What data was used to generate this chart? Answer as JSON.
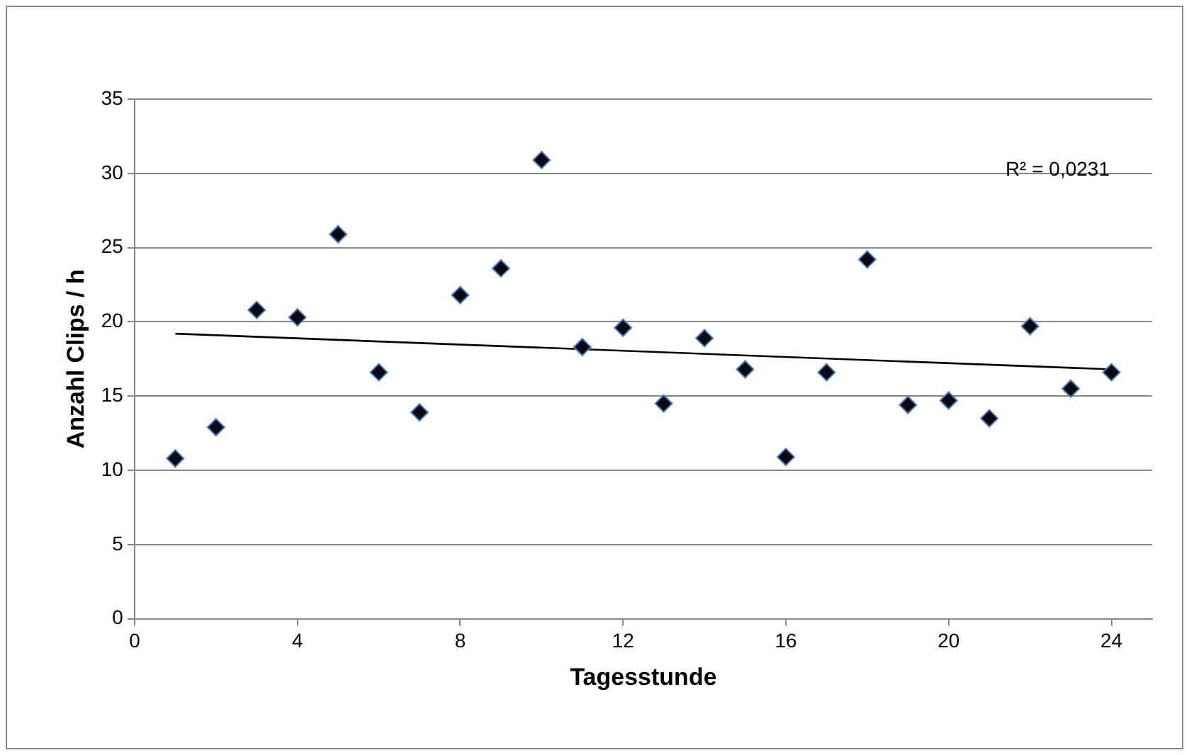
{
  "chart_data": {
    "type": "scatter",
    "xlabel": "Tagesstunde",
    "ylabel": "Anzahl Clips / h",
    "annotations": [
      "R² = 0,0231"
    ],
    "x": [
      1,
      2,
      3,
      4,
      5,
      6,
      7,
      8,
      9,
      10,
      11,
      12,
      13,
      14,
      15,
      16,
      17,
      18,
      19,
      20,
      21,
      22,
      23,
      24
    ],
    "series": [
      {
        "color": "#0a0a14",
        "values": [
          10.8,
          12.9,
          20.8,
          20.3,
          25.9,
          16.6,
          13.9,
          21.8,
          23.6,
          30.9,
          18.3,
          19.6,
          14.5,
          18.9,
          16.8,
          10.9,
          16.6,
          24.2,
          14.4,
          14.7,
          13.5,
          19.7,
          15.5,
          16.6
        ]
      },
      {
        "type": "line",
        "color": "#000000",
        "x": [
          1,
          24
        ],
        "values": [
          19.2,
          16.8
        ],
        "marker": "none"
      }
    ],
    "marker": "diamond",
    "xlim": [
      0,
      25
    ],
    "xticks": [
      0,
      4,
      8,
      12,
      16,
      20,
      24
    ],
    "ylim": [
      0,
      35
    ],
    "yticks": [
      0,
      5,
      10,
      15,
      20,
      25,
      30,
      35
    ],
    "grid": "y",
    "legend": false
  }
}
